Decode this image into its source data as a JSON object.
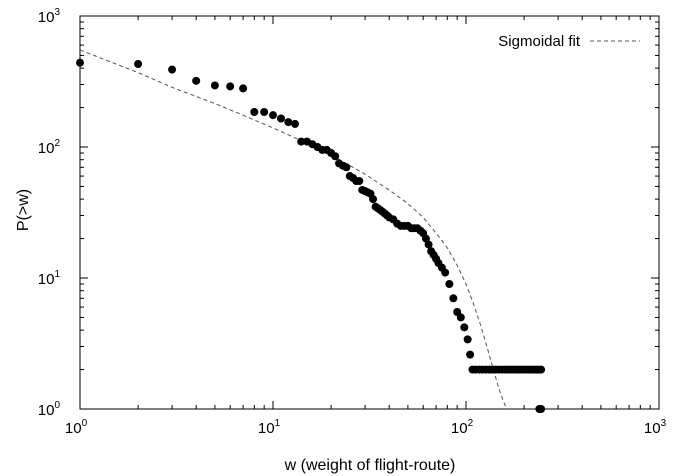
{
  "chart_data": {
    "type": "scatter",
    "title": "",
    "xlabel": "w (weight of flight-route)",
    "ylabel": "P(>w)",
    "x_scale": "log",
    "y_scale": "log",
    "xlim": [
      1,
      1000
    ],
    "ylim": [
      1,
      1000
    ],
    "grid": false,
    "legend_position": "top-right",
    "x_ticks": [
      {
        "base": "10",
        "exp": "0",
        "value": 1
      },
      {
        "base": "10",
        "exp": "1",
        "value": 10
      },
      {
        "base": "10",
        "exp": "2",
        "value": 100
      },
      {
        "base": "10",
        "exp": "3",
        "value": 1000
      }
    ],
    "y_ticks": [
      {
        "base": "10",
        "exp": "0",
        "value": 1
      },
      {
        "base": "10",
        "exp": "1",
        "value": 10
      },
      {
        "base": "10",
        "exp": "2",
        "value": 100
      },
      {
        "base": "10",
        "exp": "3",
        "value": 1000
      }
    ],
    "scatter_series": {
      "color": "#000000",
      "points": [
        [
          1,
          440
        ],
        [
          2,
          430
        ],
        [
          3,
          390
        ],
        [
          4,
          320
        ],
        [
          5,
          295
        ],
        [
          6,
          290
        ],
        [
          7,
          280
        ],
        [
          8,
          185
        ],
        [
          9,
          185
        ],
        [
          10,
          175
        ],
        [
          11,
          165
        ],
        [
          12,
          155
        ],
        [
          13,
          150
        ],
        [
          14,
          110
        ],
        [
          15,
          110
        ],
        [
          16,
          105
        ],
        [
          17,
          100
        ],
        [
          18,
          95
        ],
        [
          19,
          95
        ],
        [
          20,
          90
        ],
        [
          21,
          85
        ],
        [
          22,
          75
        ],
        [
          23,
          72
        ],
        [
          24,
          70
        ],
        [
          25,
          60
        ],
        [
          26,
          58
        ],
        [
          27,
          55
        ],
        [
          28,
          55
        ],
        [
          29,
          47
        ],
        [
          30,
          46
        ],
        [
          31,
          45
        ],
        [
          32,
          44
        ],
        [
          33,
          40
        ],
        [
          34,
          35
        ],
        [
          35,
          34
        ],
        [
          36,
          33
        ],
        [
          37,
          32
        ],
        [
          38,
          31
        ],
        [
          39,
          30
        ],
        [
          40,
          29
        ],
        [
          42,
          28
        ],
        [
          44,
          26
        ],
        [
          46,
          25
        ],
        [
          48,
          25
        ],
        [
          50,
          25
        ],
        [
          52,
          24
        ],
        [
          54,
          24
        ],
        [
          56,
          24
        ],
        [
          58,
          23
        ],
        [
          60,
          22
        ],
        [
          62,
          20
        ],
        [
          64,
          18
        ],
        [
          66,
          16
        ],
        [
          68,
          15
        ],
        [
          70,
          14
        ],
        [
          72,
          13
        ],
        [
          75,
          12
        ],
        [
          78,
          11
        ],
        [
          82,
          9
        ],
        [
          86,
          7
        ],
        [
          90,
          5.5
        ],
        [
          94,
          5
        ],
        [
          98,
          4.2
        ],
        [
          102,
          3.4
        ],
        [
          105,
          2.6
        ],
        [
          108,
          2
        ],
        [
          112,
          2
        ],
        [
          117,
          2
        ],
        [
          122,
          2
        ],
        [
          127,
          2
        ],
        [
          132,
          2
        ],
        [
          137,
          2
        ],
        [
          142,
          2
        ],
        [
          148,
          2
        ],
        [
          154,
          2
        ],
        [
          160,
          2
        ],
        [
          166,
          2
        ],
        [
          172,
          2
        ],
        [
          178,
          2
        ],
        [
          184,
          2
        ],
        [
          190,
          2
        ],
        [
          196,
          2
        ],
        [
          203,
          2
        ],
        [
          210,
          2
        ],
        [
          217,
          2
        ],
        [
          224,
          2
        ],
        [
          231,
          2
        ],
        [
          238,
          2
        ],
        [
          245,
          2
        ],
        [
          240,
          1
        ],
        [
          245,
          1
        ]
      ]
    },
    "fit_series": {
      "name": "Sigmoidal fit",
      "style": "dashed",
      "color": "#555555",
      "points": [
        [
          1,
          550
        ],
        [
          2,
          370
        ],
        [
          3,
          285
        ],
        [
          5,
          215
        ],
        [
          7,
          175
        ],
        [
          10,
          140
        ],
        [
          15,
          107
        ],
        [
          20,
          87
        ],
        [
          30,
          62
        ],
        [
          40,
          47
        ],
        [
          50,
          37
        ],
        [
          60,
          29
        ],
        [
          70,
          22
        ],
        [
          80,
          17
        ],
        [
          90,
          12.5
        ],
        [
          100,
          9
        ],
        [
          110,
          6.2
        ],
        [
          120,
          4.2
        ],
        [
          130,
          2.8
        ],
        [
          140,
          1.9
        ],
        [
          150,
          1.35
        ],
        [
          160,
          1.05
        ],
        [
          165,
          1.0
        ]
      ]
    }
  }
}
